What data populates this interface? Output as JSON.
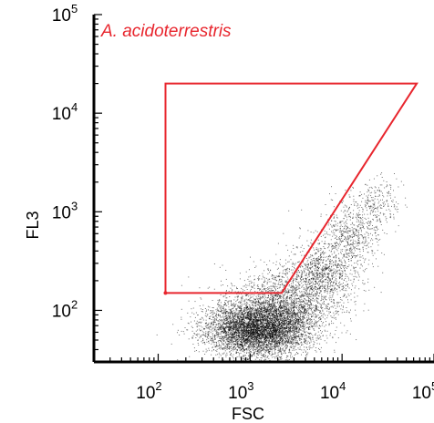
{
  "chart_data": {
    "type": "scatter",
    "title": "",
    "xlabel": "FSC",
    "ylabel": "FL3",
    "xscale": "log",
    "yscale": "log",
    "xlim": [
      20,
      100000
    ],
    "ylim": [
      30,
      100000
    ],
    "x_ticks": [
      {
        "base": "10",
        "exp": "2",
        "value": 100
      },
      {
        "base": "10",
        "exp": "3",
        "value": 1000
      },
      {
        "base": "10",
        "exp": "4",
        "value": 10000
      },
      {
        "base": "10",
        "exp": "5",
        "value": 100000
      }
    ],
    "y_ticks": [
      {
        "base": "10",
        "exp": "2",
        "value": 100
      },
      {
        "base": "10",
        "exp": "3",
        "value": 1000
      },
      {
        "base": "10",
        "exp": "4",
        "value": 10000
      },
      {
        "base": "10",
        "exp": "5",
        "value": 100000
      }
    ],
    "grid": false,
    "gate": {
      "label": "A. acidoterrestris",
      "color": "#e8262e",
      "vertices": [
        [
          120,
          150
        ],
        [
          120,
          20000
        ],
        [
          65000,
          20000
        ],
        [
          2200,
          150
        ]
      ]
    },
    "points_color": "#000000",
    "clusters": [
      {
        "center": [
          1200,
          65
        ],
        "spread": [
          0.28,
          0.14
        ],
        "count": 5500
      },
      {
        "center": [
          2500,
          120
        ],
        "spread": [
          0.3,
          0.17
        ],
        "count": 1800
      },
      {
        "center": [
          6000,
          250
        ],
        "spread": [
          0.2,
          0.16
        ],
        "count": 900
      },
      {
        "center": [
          13000,
          600
        ],
        "spread": [
          0.16,
          0.16
        ],
        "count": 550
      },
      {
        "center": [
          25000,
          1300
        ],
        "spread": [
          0.12,
          0.12
        ],
        "count": 220
      }
    ]
  }
}
